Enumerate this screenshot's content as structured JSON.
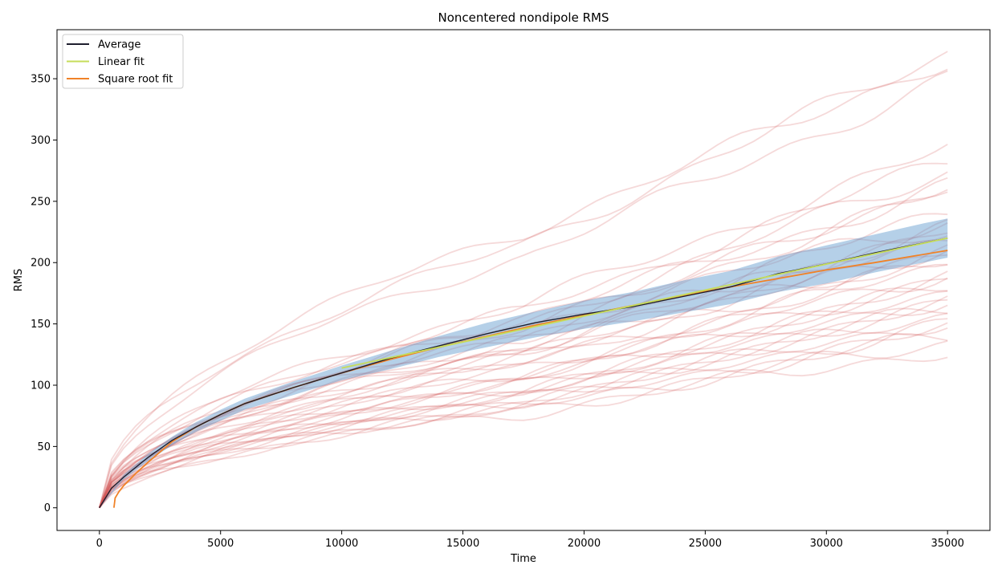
{
  "chart_data": {
    "type": "line",
    "title": "Noncentered nondipole RMS",
    "xlabel": "Time",
    "ylabel": "RMS",
    "xlim": [
      -1750,
      36750
    ],
    "ylim": [
      -18.5,
      390
    ],
    "xticks": [
      0,
      5000,
      10000,
      15000,
      20000,
      25000,
      30000,
      35000
    ],
    "yticks": [
      0,
      50,
      100,
      150,
      200,
      250,
      300,
      350
    ],
    "legend": {
      "placement": "top-left",
      "entries": [
        {
          "label": "Average",
          "color": "#1f1f2e"
        },
        {
          "label": "Linear fit",
          "color": "#c6dc5a"
        },
        {
          "label": "Square root fit",
          "color": "#f08228"
        }
      ]
    },
    "series": [
      {
        "name": "Average",
        "color": "#1f1f2e",
        "x": [
          0,
          500,
          1000,
          2000,
          3000,
          4000,
          5000,
          6000,
          8000,
          10000,
          12000,
          14000,
          16000,
          18000,
          20000,
          22000,
          24000,
          26000,
          28000,
          30000,
          32000,
          34000,
          35000
        ],
        "y": [
          0,
          16,
          25,
          41,
          55,
          66,
          76,
          85,
          98,
          110,
          122,
          132,
          142,
          151,
          158,
          164,
          172,
          180,
          191,
          199,
          208,
          216,
          220
        ]
      },
      {
        "name": "Linear fit",
        "color": "#c6dc5a",
        "x": [
          10000,
          35000
        ],
        "y": [
          114,
          220
        ]
      },
      {
        "name": "Square root fit",
        "color": "#f08228",
        "x": [
          600,
          650,
          800,
          1000,
          1500,
          2000,
          3000,
          4000,
          5000,
          6000,
          8000,
          10000,
          12000,
          14000,
          16000,
          18000,
          20000,
          22000,
          24000,
          26000,
          28000,
          30000,
          32000,
          35000
        ],
        "y": [
          0,
          8,
          13,
          18,
          28,
          37,
          54,
          66,
          76,
          85,
          98,
          110,
          121,
          131,
          140,
          149,
          157,
          165,
          173,
          180,
          187,
          194,
          200,
          210
        ]
      }
    ],
    "band": {
      "color": "#5a96cc",
      "x": [
        0,
        1000,
        2000,
        3000,
        4000,
        5000,
        6000,
        8000,
        10000,
        12000,
        14000,
        16000,
        18000,
        20000,
        22000,
        24000,
        26000,
        28000,
        30000,
        32000,
        34000,
        35000
      ],
      "lower": [
        0,
        23,
        38,
        51,
        62,
        71,
        80,
        92,
        104,
        113,
        123,
        131,
        139,
        146,
        152,
        159,
        166,
        176,
        183,
        192,
        200,
        204
      ],
      "upper": [
        0,
        27,
        44,
        58,
        70,
        80,
        89,
        103,
        116,
        128,
        140,
        151,
        160,
        169,
        176,
        185,
        193,
        205,
        214,
        223,
        232,
        236
      ]
    },
    "trajectories": {
      "color": "#d25050",
      "final_values": [
        372,
        366,
        350,
        293,
        282,
        275,
        265,
        261,
        258,
        240,
        235,
        230,
        226,
        222,
        218,
        214,
        210,
        205,
        200,
        198,
        193,
        188,
        184,
        180,
        176,
        172,
        168,
        165,
        162,
        158,
        154,
        150,
        145,
        140,
        136,
        130
      ],
      "midpoint_values": [
        215,
        225,
        205,
        165,
        160,
        150,
        140,
        155,
        145,
        135,
        148,
        130,
        138,
        128,
        124,
        120,
        132,
        126,
        118,
        112,
        110,
        108,
        106,
        104,
        100,
        98,
        96,
        94,
        92,
        90,
        88,
        86,
        84,
        82,
        80,
        78
      ]
    }
  }
}
